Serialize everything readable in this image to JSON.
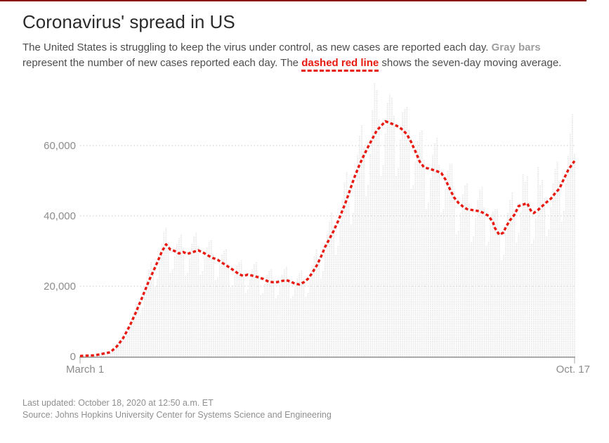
{
  "page": {
    "accent_color": "#8b1409",
    "red": "#e8190f",
    "bar_gray": "#e1e1e1",
    "axis_gray": "#8c8c8c",
    "grid_gray": "#c9c9c9",
    "baseline_gray": "#ababab"
  },
  "header": {
    "title": "Coronavirus' spread in US",
    "description": {
      "segment1": "The United States is struggling to keep the virus under control, as new cases are reported each day. ",
      "gray_bars_label": "Gray bars",
      "segment2": " represent the number of new cases reported each day. The ",
      "red_line_label": "dashed red line",
      "segment3": " shows the seven-day moving average."
    }
  },
  "footer": {
    "last_updated": "Last updated: October 18, 2020 at 12:50 a.m. ET",
    "source": "Source: Johns Hopkins University Center for Systems Science and Engineering"
  },
  "chart_data": {
    "type": "bar",
    "title": "Coronavirus' spread in US",
    "x": {
      "start_label": "March 1",
      "end_label": "Oct. 17",
      "start_date": "2020-03-01",
      "end_date": "2020-10-17",
      "days": 231
    },
    "y_axis": {
      "ticks": [
        {
          "value": 0,
          "label": "0"
        },
        {
          "value": 20000,
          "label": "20,000"
        },
        {
          "value": 40000,
          "label": "40,000"
        },
        {
          "value": 60000,
          "label": "60,000"
        }
      ],
      "max": 78000,
      "gridlines": "dotted",
      "legend_position": "none"
    },
    "series": [
      {
        "name": "New cases reported each day (gray bars)",
        "type": "bar",
        "color": "#e1e1e1",
        "values": [
          120,
          150,
          200,
          260,
          300,
          340,
          330,
          270,
          390,
          560,
          770,
          970,
          1130,
          1120,
          940,
          1420,
          2160,
          3020,
          4140,
          5190,
          5410,
          4940,
          6130,
          8170,
          10720,
          12960,
          14870,
          14630,
          12110,
          13940,
          17580,
          21600,
          24720,
          26940,
          25140,
          19890,
          22080,
          26950,
          32180,
          35480,
          36600,
          32400,
          23710,
          24760,
          28500,
          32020,
          33700,
          34810,
          30890,
          22970,
          23940,
          27930,
          31970,
          34270,
          35400,
          31410,
          23320,
          24270,
          27840,
          31240,
          32860,
          33280,
          29090,
          21630,
          22550,
          25750,
          28840,
          30250,
          30560,
          26520,
          19580,
          20250,
          23060,
          25740,
          26910,
          27320,
          23820,
          18020,
          19110,
          22010,
          24870,
          26340,
          26790,
          23400,
          17390,
          18120,
          20710,
          23220,
          24380,
          24980,
          21980,
          16460,
          17410,
          20300,
          23220,
          24840,
          25610,
          22360,
          16610,
          17220,
          19670,
          22250,
          23580,
          24540,
          21940,
          16850,
          18120,
          21800,
          25700,
          28520,
          30440,
          28130,
          22070,
          24400,
          29640,
          34940,
          38530,
          40890,
          37230,
          28980,
          31570,
          38000,
          44820,
          49510,
          52630,
          44000,
          37600,
          40920,
          49020,
          57350,
          62790,
          65960,
          59490,
          45590,
          48950,
          57810,
          70000,
          77800,
          76000,
          67550,
          51170,
          54330,
          63560,
          72000,
          74500,
          73800,
          68600,
          51220,
          53630,
          61700,
          69700,
          70400,
          71000,
          64580,
          47580,
          48910,
          55390,
          61400,
          63710,
          64430,
          55950,
          41830,
          43850,
          50640,
          57350,
          60840,
          62190,
          54550,
          40720,
          42030,
          47790,
          52870,
          54740,
          54750,
          47010,
          34670,
          35830,
          41040,
          46120,
          48650,
          49440,
          43470,
          32530,
          34110,
          39430,
          44710,
          47500,
          48380,
          42330,
          31470,
          32800,
          37150,
          41260,
          41980,
          41950,
          35980,
          27260,
          28950,
          34960,
          40820,
          44620,
          46670,
          41910,
          32410,
          35100,
          40850,
          52000,
          49910,
          51450,
          43890,
          32140,
          33460,
          39190,
          54000,
          48590,
          50500,
          45080,
          34240,
          36410,
          42660,
          49360,
          53480,
          55640,
          49710,
          38340,
          41410,
          49160,
          57240,
          63500,
          69000,
          57800
        ]
      },
      {
        "name": "Seven-day moving average (dashed red line)",
        "type": "line",
        "color": "#e8190f",
        "style": "dashed",
        "values": [
          150,
          180,
          210,
          240,
          260,
          290,
          320,
          350,
          470,
          590,
          710,
          840,
          960,
          1080,
          1200,
          1730,
          2270,
          2800,
          3600,
          4400,
          5200,
          6330,
          7470,
          8600,
          9930,
          11270,
          12600,
          14070,
          15530,
          17000,
          18500,
          20000,
          21500,
          22830,
          24170,
          25500,
          26930,
          28370,
          29800,
          30850,
          31900,
          31150,
          30400,
          30200,
          30000,
          29650,
          29300,
          29500,
          29700,
          29450,
          29200,
          29400,
          29600,
          29800,
          30000,
          30200,
          29900,
          29600,
          29300,
          28930,
          28570,
          28200,
          27970,
          27730,
          27500,
          27100,
          26700,
          26300,
          25900,
          25500,
          25100,
          24700,
          24270,
          23830,
          23400,
          23150,
          22900,
          23100,
          23300,
          23170,
          23030,
          22900,
          22700,
          22500,
          22300,
          22100,
          21800,
          21500,
          21200,
          21170,
          21130,
          21100,
          21230,
          21370,
          21500,
          21600,
          21700,
          21500,
          21300,
          21000,
          20700,
          20600,
          20500,
          20800,
          21100,
          21600,
          22100,
          22950,
          23800,
          24800,
          25800,
          27050,
          28300,
          29750,
          31200,
          32350,
          33500,
          34650,
          35800,
          37150,
          38500,
          40000,
          41500,
          43050,
          44600,
          46400,
          48200,
          49900,
          51600,
          53100,
          54600,
          55900,
          57200,
          58450,
          59700,
          60850,
          62000,
          63150,
          64300,
          64950,
          65600,
          66250,
          66900,
          66670,
          66430,
          66200,
          65930,
          65670,
          65400,
          64950,
          64500,
          63850,
          63200,
          62100,
          61000,
          59650,
          58300,
          56850,
          55400,
          54600,
          53800,
          53630,
          53470,
          53300,
          53100,
          52900,
          52700,
          52450,
          52200,
          51250,
          50300,
          48950,
          47600,
          46400,
          45200,
          44450,
          43700,
          43200,
          42700,
          42300,
          41900,
          41800,
          41700,
          41600,
          41500,
          41400,
          41300,
          41000,
          40700,
          40350,
          40000,
          39100,
          38200,
          36500,
          35550,
          34600,
          34950,
          35300,
          36800,
          37800,
          38800,
          39550,
          40300,
          41550,
          42800,
          43000,
          43200,
          43400,
          43600,
          42200,
          41200,
          40800,
          41250,
          41700,
          42250,
          42800,
          43350,
          43900,
          44400,
          44900,
          45700,
          46500,
          47150,
          47800,
          49150,
          50500,
          51750,
          53000,
          53900,
          54800,
          55600
        ]
      }
    ]
  }
}
